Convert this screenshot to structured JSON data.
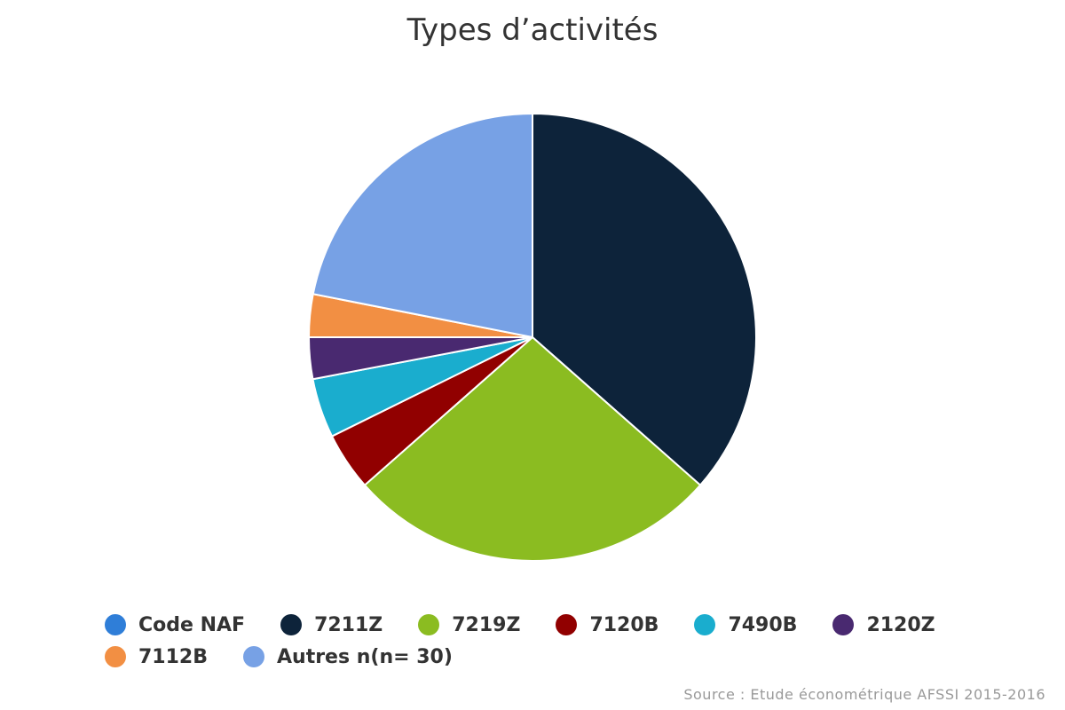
{
  "chart_data": {
    "type": "pie",
    "title": "Types d’activités",
    "source": "Source : Etude économétrique AFSSI 2015-2016",
    "legend_position": "bottom",
    "slices": [
      {
        "label": "Code NAF",
        "value": 0,
        "color": "#2f7ed8"
      },
      {
        "label": "7211Z",
        "value": 36.5,
        "color": "#0d233a"
      },
      {
        "label": "7219Z",
        "value": 27.0,
        "color": "#8bbc21"
      },
      {
        "label": "7120B",
        "value": 4.2,
        "color": "#910000"
      },
      {
        "label": "7490B",
        "value": 4.3,
        "color": "#1aadce"
      },
      {
        "label": "2120Z",
        "value": 3.0,
        "color": "#492970"
      },
      {
        "label": "7112B",
        "value": 3.1,
        "color": "#f28f43"
      },
      {
        "label": "Autres n(n= 30)",
        "value": 21.9,
        "color": "#77a1e5"
      }
    ]
  }
}
